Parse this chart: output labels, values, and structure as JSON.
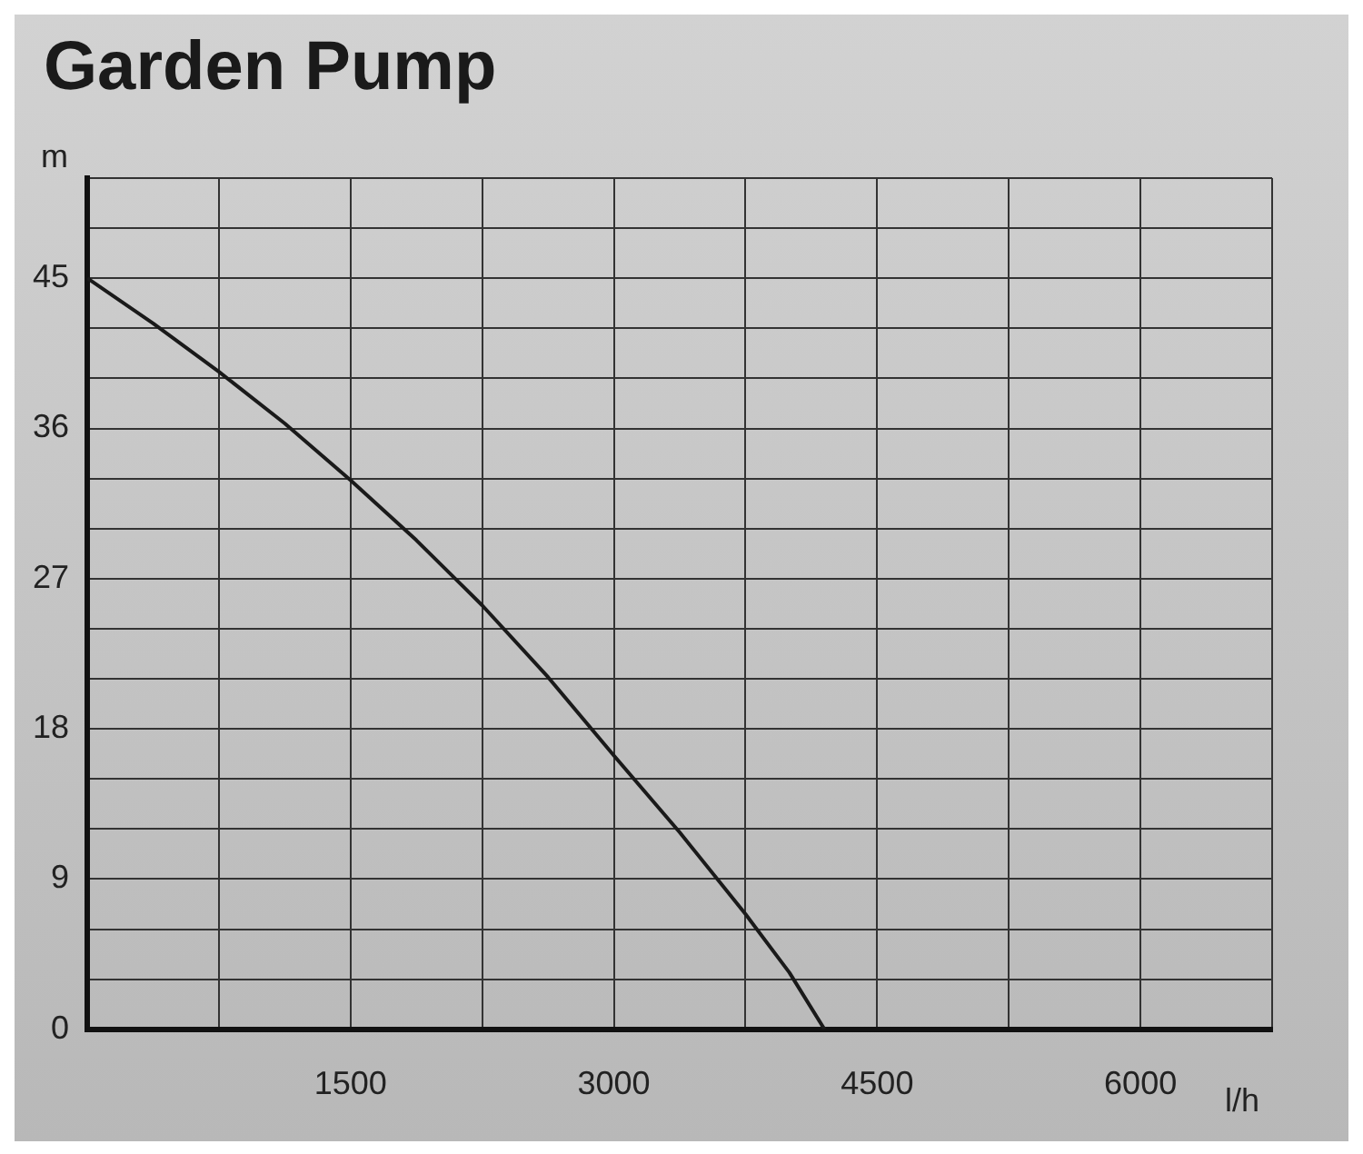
{
  "chart_data": {
    "type": "line",
    "title": "Garden Pump",
    "xlabel": "l/h",
    "ylabel": "m",
    "x": [
      0,
      375,
      750,
      1125,
      1500,
      1875,
      2250,
      2625,
      3000,
      3375,
      3750,
      4000,
      4200
    ],
    "series": [
      {
        "color": "#1a1a1a",
        "values": [
          45,
          42.3,
          39.4,
          36.3,
          32.9,
          29.3,
          25.4,
          21.1,
          16.4,
          11.8,
          6.9,
          3.4,
          0
        ]
      }
    ],
    "xlim": [
      0,
      6750
    ],
    "xticks": [
      {
        "value": 0,
        "label": null
      },
      {
        "value": 750,
        "label": null
      },
      1500,
      {
        "value": 2250,
        "label": null
      },
      3000,
      {
        "value": 3750,
        "label": null
      },
      4500,
      {
        "value": 5250,
        "label": null
      },
      6000,
      {
        "value": 6750,
        "label": null
      }
    ],
    "ylim": [
      0,
      51
    ],
    "yticks": [
      0,
      {
        "value": 3,
        "label": null
      },
      {
        "value": 6,
        "label": null
      },
      9,
      {
        "value": 12,
        "label": null
      },
      {
        "value": 15,
        "label": null
      },
      18,
      {
        "value": 21,
        "label": null
      },
      {
        "value": 24,
        "label": null
      },
      27,
      {
        "value": 30,
        "label": null
      },
      {
        "value": 33,
        "label": null
      },
      36,
      {
        "value": 39,
        "label": null
      },
      {
        "value": 42,
        "label": null
      },
      45,
      {
        "value": 48,
        "label": null
      },
      {
        "value": 51,
        "label": null
      }
    ],
    "grid": true,
    "marker": "none",
    "line_style": "solid",
    "legend": false
  }
}
